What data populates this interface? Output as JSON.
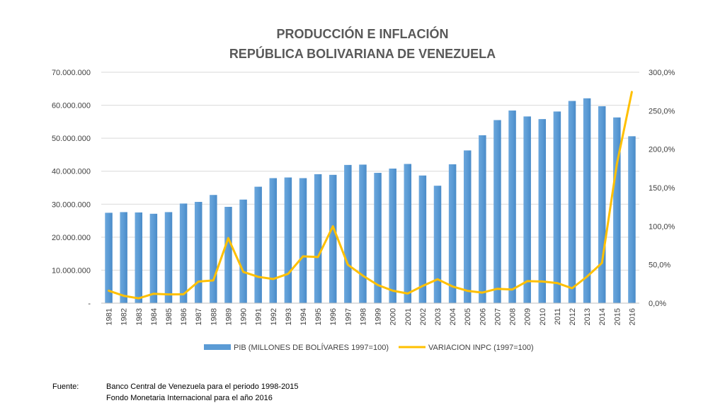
{
  "chart_data": {
    "type": "bar",
    "title": "PRODUCCIÓN E INFLACIÓN",
    "subtitle": "REPÚBLICA BOLIVARIANA DE VENEZUELA",
    "categories": [
      "1981",
      "1982",
      "1983",
      "1984",
      "1985",
      "1986",
      "1987",
      "1988",
      "1989",
      "1990",
      "1991",
      "1992",
      "1993",
      "1994",
      "1995",
      "1996",
      "1997",
      "1998",
      "1999",
      "2000",
      "2001",
      "2002",
      "2003",
      "2004",
      "2005",
      "2006",
      "2007",
      "2008",
      "2009",
      "2010",
      "2011",
      "2012",
      "2013",
      "2014",
      "2015",
      "2016"
    ],
    "series": [
      {
        "name": "PIB (MILLONES DE BOLÍVARES 1997=100)",
        "type": "bar",
        "axis": "left",
        "color": "#5b9bd5",
        "values": [
          27400000,
          27600000,
          27500000,
          27100000,
          27600000,
          30200000,
          30700000,
          32800000,
          29200000,
          31400000,
          35300000,
          37900000,
          38100000,
          37900000,
          39100000,
          38900000,
          41900000,
          42000000,
          39500000,
          40800000,
          42200000,
          38700000,
          35600000,
          42100000,
          46300000,
          50900000,
          55500000,
          58400000,
          56600000,
          55800000,
          58100000,
          61300000,
          62100000,
          59700000,
          56300000,
          50600000
        ]
      },
      {
        "name": "VARIACION INPC (1997=100)",
        "type": "line",
        "axis": "right",
        "color": "#ffc000",
        "values": [
          16.2,
          9.6,
          6.3,
          12.2,
          11.4,
          11.5,
          28.1,
          29.5,
          84.5,
          40.7,
          34.2,
          31.4,
          38.1,
          60.8,
          59.9,
          99.9,
          50.0,
          35.8,
          23.6,
          16.2,
          12.5,
          22.4,
          31.1,
          21.7,
          16.0,
          13.7,
          18.7,
          17.8,
          28.6,
          28.2,
          26.1,
          19.3,
          34.5,
          52.3,
          180.9,
          274.4
        ]
      }
    ],
    "yaxis_left": {
      "min": 0,
      "max": 70000000,
      "ticks": [
        "-",
        "10.000.000",
        "20.000.000",
        "30.000.000",
        "40.000.000",
        "50.000.000",
        "60.000.000",
        "70.000.000"
      ]
    },
    "yaxis_right": {
      "min": 0,
      "max": 300,
      "ticks": [
        "0,0%",
        "50,0%",
        "100,0%",
        "150,0%",
        "200,0%",
        "250,0%",
        "300,0%"
      ]
    },
    "grid": true,
    "legend_position": "bottom"
  },
  "source": {
    "label": "Fuente:",
    "lines": [
      "Banco Central de Venezuela para el periodo 1998-2015",
      "Fondo Monetaria Internacional para el año 2016"
    ]
  }
}
